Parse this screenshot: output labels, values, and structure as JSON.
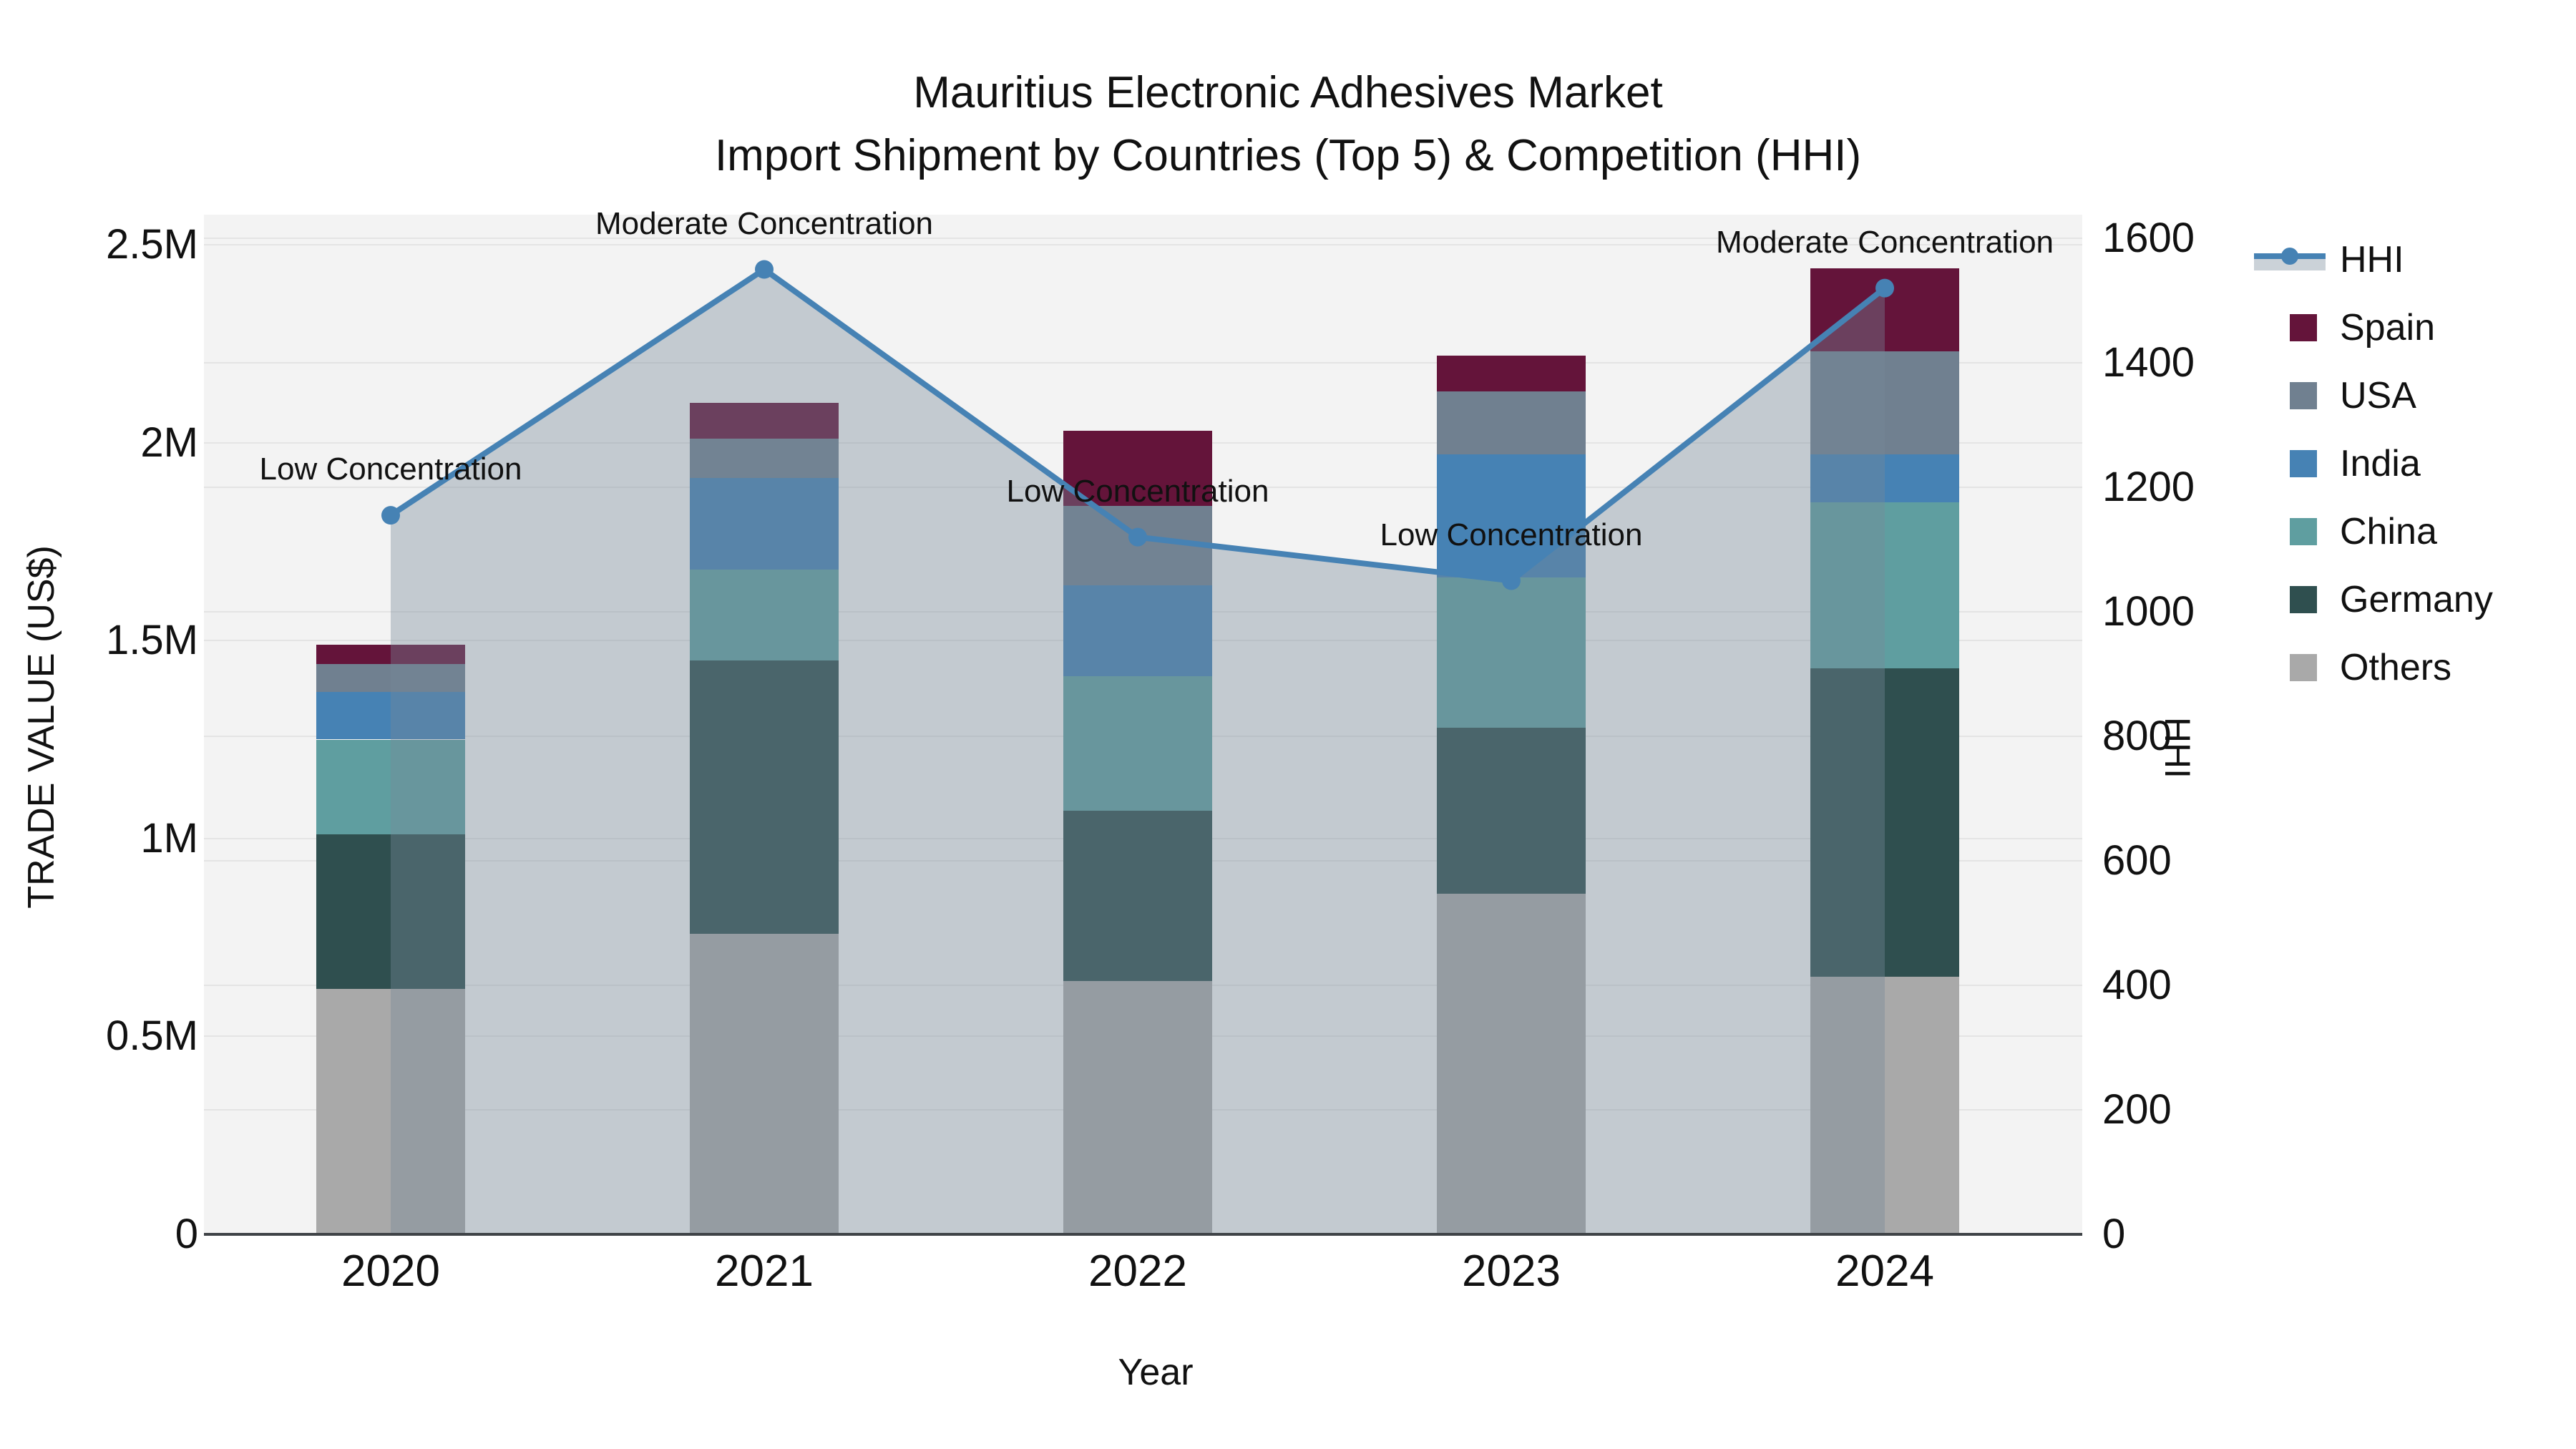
{
  "title": {
    "line1": "Mauritius Electronic Adhesives Market",
    "line2": "Import Shipment by Countries (Top 5) & Competition (HHI)"
  },
  "axes": {
    "left": {
      "title": "TRADE VALUE (US$)",
      "ticks": [
        {
          "label": "2.5M",
          "value": 2.5
        },
        {
          "label": "2M",
          "value": 2.0
        },
        {
          "label": "1.5M",
          "value": 1.5
        },
        {
          "label": "1M",
          "value": 1.0
        },
        {
          "label": "0.5M",
          "value": 0.5
        },
        {
          "label": "0",
          "value": 0.0
        }
      ]
    },
    "right": {
      "title": "HHI",
      "ticks": [
        {
          "label": "1600",
          "value": 1600
        },
        {
          "label": "1400",
          "value": 1400
        },
        {
          "label": "1200",
          "value": 1200
        },
        {
          "label": "1000",
          "value": 1000
        },
        {
          "label": "800",
          "value": 800
        },
        {
          "label": "600",
          "value": 600
        },
        {
          "label": "400",
          "value": 400
        },
        {
          "label": "200",
          "value": 200
        },
        {
          "label": "0",
          "value": 0
        }
      ]
    },
    "x": {
      "title": "Year"
    }
  },
  "legend": {
    "items": [
      {
        "label": "HHI",
        "series": "HHI",
        "type": "line"
      },
      {
        "label": "Spain",
        "series": "Spain",
        "type": "swatch"
      },
      {
        "label": "USA",
        "series": "USA",
        "type": "swatch"
      },
      {
        "label": "India",
        "series": "India",
        "type": "swatch"
      },
      {
        "label": "China",
        "series": "China",
        "type": "swatch"
      },
      {
        "label": "Germany",
        "series": "Germany",
        "type": "swatch"
      },
      {
        "label": "Others",
        "series": "Others",
        "type": "swatch"
      }
    ]
  },
  "chart_data": {
    "type": "bar",
    "combo": "stacked-bar+line",
    "unit": "US$ (millions)",
    "categories": [
      "2020",
      "2021",
      "2022",
      "2023",
      "2024"
    ],
    "series": [
      {
        "name": "Spain",
        "values_musd": [
          0.05,
          0.09,
          0.19,
          0.09,
          0.21
        ]
      },
      {
        "name": "USA",
        "values_musd": [
          0.07,
          0.1,
          0.2,
          0.16,
          0.26
        ]
      },
      {
        "name": "India",
        "values_musd": [
          0.12,
          0.23,
          0.23,
          0.31,
          0.12
        ]
      },
      {
        "name": "China",
        "values_musd": [
          0.24,
          0.23,
          0.34,
          0.38,
          0.42
        ]
      },
      {
        "name": "Germany",
        "values_musd": [
          0.39,
          0.69,
          0.43,
          0.42,
          0.78
        ]
      },
      {
        "name": "Others",
        "values_musd": [
          0.62,
          0.76,
          0.64,
          0.86,
          0.65
        ]
      }
    ],
    "stack_order_bottom_to_top": [
      "Others",
      "Germany",
      "China",
      "India",
      "USA",
      "Spain"
    ],
    "line_series": {
      "name": "HHI",
      "axis": "right",
      "values": [
        1155,
        1550,
        1120,
        1050,
        1520
      ],
      "area_fill_under_line": true
    },
    "annotations": [
      {
        "category": "2020",
        "label": "Low Concentration"
      },
      {
        "category": "2021",
        "label": "Moderate Concentration"
      },
      {
        "category": "2022",
        "label": "Low Concentration"
      },
      {
        "category": "2023",
        "label": "Low Concentration"
      },
      {
        "category": "2024",
        "label": "Moderate Concentration"
      }
    ],
    "ylim_musd": [
      0,
      2.5
    ],
    "y2lim": [
      0,
      1600
    ],
    "legend_position": "right",
    "grid": true,
    "colors": {
      "Spain": "#64143a",
      "USA": "#708090",
      "India": "#4682b4",
      "China": "#5f9ea0",
      "Germany": "#2f4f4f",
      "Others": "#a9a9a9",
      "HHI": "#4682b4",
      "hhi_fill": "rgba(119,136,153,0.38)",
      "plot_bg": "#f3f3f3",
      "gridline": "#e4e4e4"
    }
  }
}
